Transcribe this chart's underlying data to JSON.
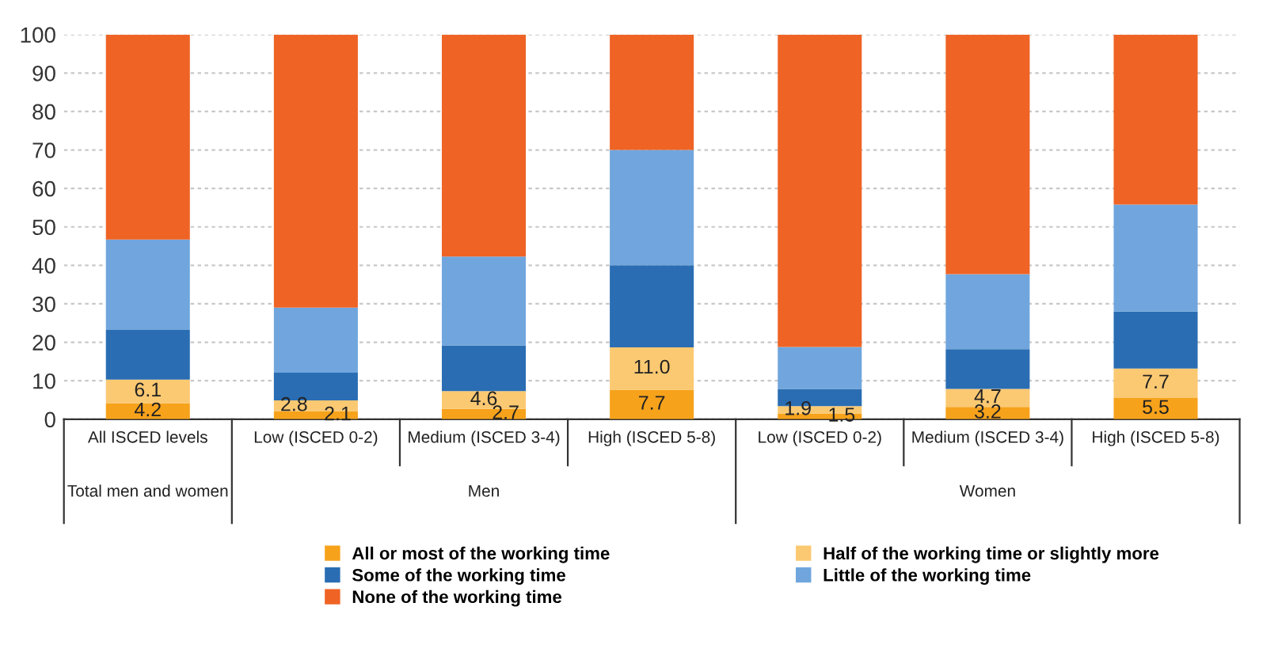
{
  "chart_data": {
    "type": "bar",
    "stacked": true,
    "categories": [
      "All ISCED levels",
      "Low (ISCED 0-2)",
      "Medium (ISCED 3-4)",
      "High (ISCED 5-8)",
      "Low (ISCED 0-2)",
      "Medium (ISCED 3-4)",
      "High (ISCED 5-8)"
    ],
    "series": [
      {
        "name": "All or most of the working time",
        "color": "#f7a21b",
        "values": [
          4.2,
          2.1,
          2.7,
          7.7,
          1.5,
          3.2,
          5.5
        ],
        "value_labels": [
          "4.2",
          "2.1",
          "2.7",
          "7.7",
          "1.5",
          "3.2",
          "5.5"
        ]
      },
      {
        "name": "Half of the working time or slightly more",
        "color": "#fbc972",
        "values": [
          6.1,
          2.8,
          4.6,
          11.0,
          1.9,
          4.7,
          7.7
        ],
        "value_labels": [
          "6.1",
          "2.8",
          "4.6",
          "11.0",
          "1.9",
          "4.7",
          "7.7"
        ]
      },
      {
        "name": "Some of the working time",
        "color": "#2a6db3",
        "values": [
          12.9,
          7.2,
          11.9,
          21.3,
          4.5,
          10.3,
          14.8
        ]
      },
      {
        "name": "Little of the working time",
        "color": "#70a6dd",
        "values": [
          23.5,
          16.9,
          23.1,
          30.0,
          10.9,
          19.5,
          27.8
        ]
      },
      {
        "name": "None of the working time",
        "color": "#ef6325",
        "values": [
          53.3,
          71.0,
          57.7,
          30.0,
          81.2,
          62.3,
          44.2
        ]
      }
    ],
    "annotations": [
      "Total men and women",
      "Men",
      "Women"
    ],
    "ylim": [
      0,
      100
    ],
    "yticks": [
      0,
      10,
      20,
      30,
      40,
      50,
      60,
      70,
      80,
      90,
      100
    ],
    "grid": "y",
    "legend": "bottom"
  }
}
